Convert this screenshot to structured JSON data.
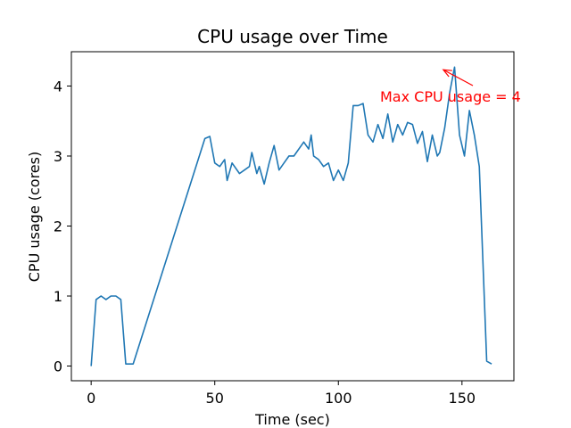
{
  "chart_data": {
    "type": "line",
    "title": "CPU usage over Time",
    "xlabel": "Time (sec)",
    "ylabel": "CPU usage (cores)",
    "xlim": [
      -8,
      171
    ],
    "ylim": [
      -0.21,
      4.49
    ],
    "x_ticks": [
      0,
      50,
      100,
      150
    ],
    "y_ticks": [
      0,
      1,
      2,
      3,
      4
    ],
    "grid": false,
    "line_color": "#1f77b4",
    "annotation": {
      "text": "Max CPU usage = 4",
      "color": "#ff0000",
      "x": 141,
      "y": 4.27
    },
    "series": [
      {
        "x": [
          0,
          2,
          4,
          6,
          8,
          10,
          12,
          14,
          17,
          46,
          48,
          50,
          52,
          54,
          55,
          57,
          60,
          62,
          64,
          65,
          67,
          68,
          70,
          72,
          74,
          76,
          78,
          80,
          82,
          86,
          88,
          89,
          90,
          92,
          94,
          96,
          98,
          100,
          102,
          104,
          106,
          108,
          110,
          112,
          114,
          116,
          118,
          120,
          122,
          124,
          126,
          128,
          130,
          132,
          134,
          136,
          138,
          140,
          141,
          143,
          145,
          147,
          149,
          151,
          153,
          155,
          157,
          160,
          162
        ],
        "values": [
          0.0,
          0.95,
          1.0,
          0.95,
          1.0,
          1.0,
          0.95,
          0.03,
          0.03,
          3.25,
          3.28,
          2.9,
          2.85,
          2.95,
          2.65,
          2.9,
          2.75,
          2.8,
          2.85,
          3.05,
          2.75,
          2.85,
          2.6,
          2.9,
          3.15,
          2.8,
          2.9,
          3.0,
          3.0,
          3.2,
          3.1,
          3.3,
          3.0,
          2.95,
          2.85,
          2.9,
          2.65,
          2.8,
          2.65,
          2.9,
          3.72,
          3.72,
          3.75,
          3.3,
          3.2,
          3.45,
          3.25,
          3.6,
          3.2,
          3.45,
          3.3,
          3.48,
          3.45,
          3.18,
          3.35,
          2.92,
          3.3,
          3.0,
          3.05,
          3.4,
          3.9,
          4.27,
          3.3,
          3.0,
          3.65,
          3.3,
          2.85,
          0.07,
          0.03
        ]
      }
    ]
  }
}
